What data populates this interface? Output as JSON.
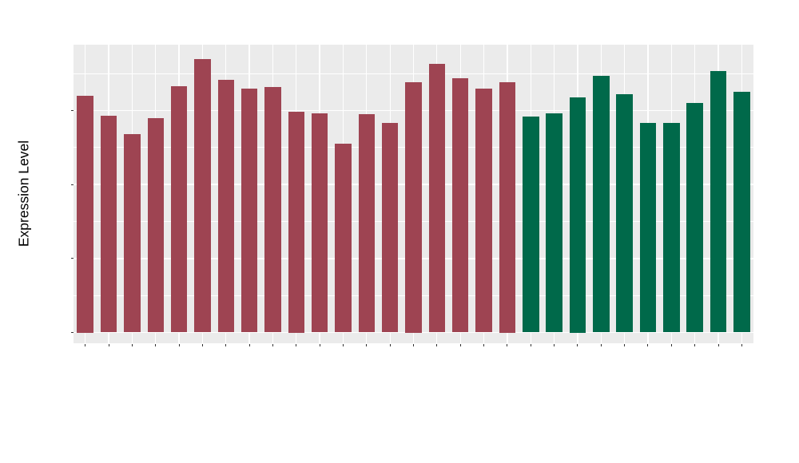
{
  "chart_data": {
    "type": "bar",
    "title": "",
    "xlabel": "",
    "ylabel": "Expression Level",
    "ylim": [
      0,
      11.7
    ],
    "yticks_major": [
      0,
      3,
      6,
      9
    ],
    "yticks_minor": [
      1.5,
      4.5,
      7.5,
      10.5
    ],
    "grid": "white major+minor horizontal lines and per-category vertical lines on grey panel",
    "legend_position": "none",
    "categories": [
      "GSM1210744",
      "GSM1210745",
      "GSM1210746",
      "GSM1210748",
      "GSM1210749",
      "GSM1210750",
      "GSM1210751",
      "GSM1210752",
      "GSM1210753",
      "GSM1210759",
      "GSM1210760",
      "GSM1210761",
      "GSM1210762",
      "GSM1210763",
      "GSM1210764",
      "GSM1210765",
      "GSM1210766",
      "GSM1210767",
      "GSM1210768",
      "GSM1210739",
      "GSM1210740",
      "GSM1210741",
      "GSM1210742",
      "GSM1210743",
      "GSM1210754",
      "GSM1210755",
      "GSM1210756",
      "GSM1210757",
      "GSM1210758"
    ],
    "values": [
      9.6,
      8.8,
      8.05,
      8.7,
      10.0,
      11.1,
      10.25,
      9.9,
      9.95,
      8.95,
      8.9,
      7.65,
      8.85,
      8.5,
      10.15,
      10.9,
      10.3,
      9.9,
      10.15,
      8.75,
      8.9,
      9.55,
      10.4,
      9.65,
      8.5,
      8.5,
      9.3,
      10.6,
      9.75
    ],
    "bar_colors": [
      "#9E4452",
      "#9E4452",
      "#9E4452",
      "#9E4452",
      "#9E4452",
      "#9E4452",
      "#9E4452",
      "#9E4452",
      "#9E4452",
      "#9E4452",
      "#9E4452",
      "#9E4452",
      "#9E4452",
      "#9E4452",
      "#9E4452",
      "#9E4452",
      "#9E4452",
      "#9E4452",
      "#9E4452",
      "#00694A",
      "#00694A",
      "#00694A",
      "#00694A",
      "#00694A",
      "#00694A",
      "#00694A",
      "#00694A",
      "#00694A",
      "#00694A"
    ],
    "group_colors": [
      "#9E4452",
      "#00694A"
    ]
  },
  "style": {
    "figure_background": "#FFFFFF",
    "panel_background": "#EBEBEB",
    "gridline_color": "#FFFFFF",
    "y_tick_label_color": "#4D4D4D",
    "x_tick_label_color": "#111111",
    "tick_mark_color": "#333333",
    "axis_title_color": "#000000"
  }
}
